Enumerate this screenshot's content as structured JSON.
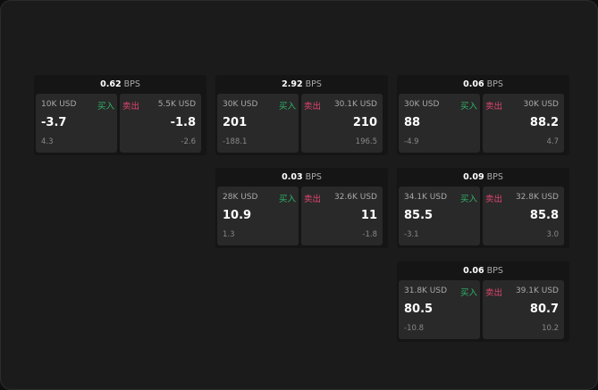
{
  "labels": {
    "unit": "BPS",
    "buy": "买入",
    "sell": "卖出"
  },
  "colors": {
    "buy": "#2fb56a",
    "sell": "#e0456e"
  },
  "cards": [
    {
      "bps": "0.62",
      "buy": {
        "size": "10K USD",
        "price": "-3.7",
        "change": "4.3"
      },
      "sell": {
        "size": "5.5K USD",
        "price": "-1.8",
        "change": "-2.6"
      }
    },
    {
      "bps": "2.92",
      "buy": {
        "size": "30K USD",
        "price": "201",
        "change": "-188.1"
      },
      "sell": {
        "size": "30.1K USD",
        "price": "210",
        "change": "196.5"
      }
    },
    {
      "bps": "0.06",
      "buy": {
        "size": "30K USD",
        "price": "88",
        "change": "-4.9"
      },
      "sell": {
        "size": "30K USD",
        "price": "88.2",
        "change": "4.7"
      }
    },
    {
      "bps": "0.03",
      "buy": {
        "size": "28K USD",
        "price": "10.9",
        "change": "1.3"
      },
      "sell": {
        "size": "32.6K USD",
        "price": "11",
        "change": "-1.8"
      }
    },
    {
      "bps": "0.09",
      "buy": {
        "size": "34.1K USD",
        "price": "85.5",
        "change": "-3.1"
      },
      "sell": {
        "size": "32.8K USD",
        "price": "85.8",
        "change": "3.0"
      }
    },
    {
      "bps": "0.06",
      "buy": {
        "size": "31.8K USD",
        "price": "80.5",
        "change": "-10.8"
      },
      "sell": {
        "size": "39.1K USD",
        "price": "80.7",
        "change": "10.2"
      }
    }
  ]
}
